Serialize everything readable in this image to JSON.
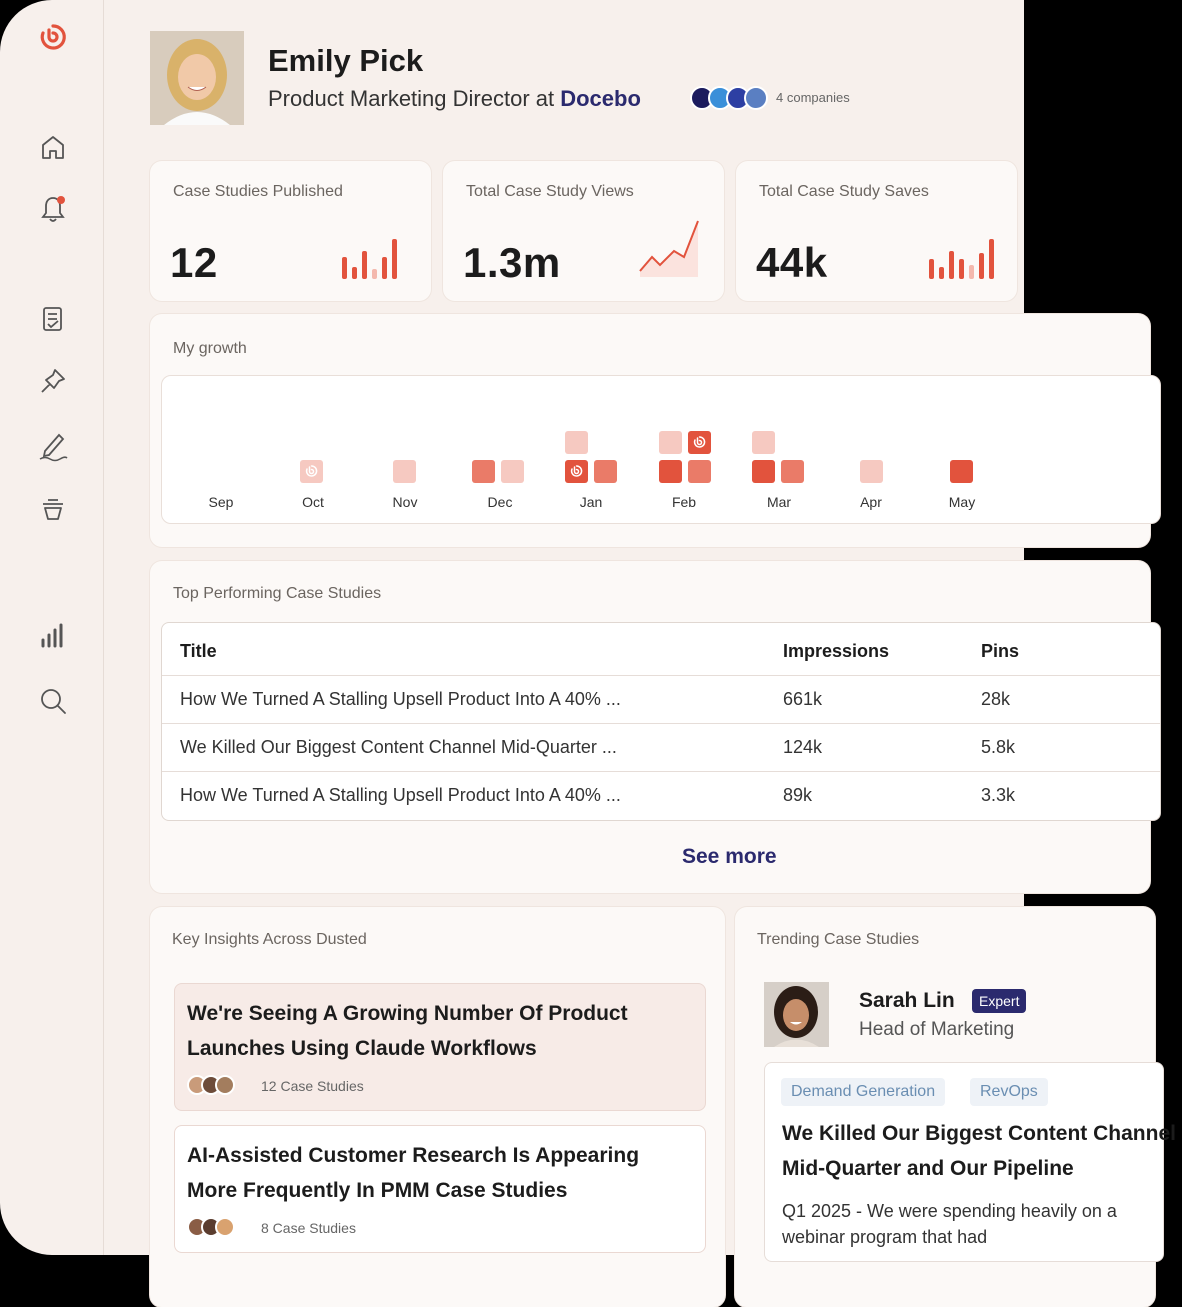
{
  "profile": {
    "name": "Emily Pick",
    "role_prefix": "Product Marketing Director at",
    "company": "Docebo",
    "companies_count": "4 companies"
  },
  "stats": [
    {
      "label": "Case Studies Published",
      "value": "12"
    },
    {
      "label": "Total Case Study Views",
      "value": "1.3m"
    },
    {
      "label": "Total Case Study Saves",
      "value": "44k"
    }
  ],
  "growth": {
    "title": "My growth",
    "months": [
      "Sep",
      "Oct",
      "Nov",
      "Dec",
      "Jan",
      "Feb",
      "Mar",
      "Apr",
      "May"
    ]
  },
  "top_case_studies": {
    "title": "Top Performing Case Studies",
    "columns": [
      "Title",
      "Impressions",
      "Pins"
    ],
    "rows": [
      {
        "title": "How We Turned A Stalling Upsell Product Into A 40% ...",
        "impressions": "661k",
        "pins": "28k"
      },
      {
        "title": "We Killed Our Biggest Content Channel Mid-Quarter ...",
        "impressions": "124k",
        "pins": "5.8k"
      },
      {
        "title": "How We Turned A Stalling Upsell Product Into A 40% ...",
        "impressions": "89k",
        "pins": "3.3k"
      }
    ],
    "see_more": "See more"
  },
  "insights": {
    "title": "Key Insights Across Dusted",
    "items": [
      {
        "title": "We're Seeing A Growing Number Of Product Launches Using Claude Workflows",
        "count": "12 Case Studies"
      },
      {
        "title": "AI-Assisted Customer Research Is Appearing More Frequently In PMM Case Studies",
        "count": "8 Case Studies"
      }
    ]
  },
  "trending": {
    "title": "Trending Case Studies",
    "author": "Sarah Lin",
    "badge": "Expert",
    "author_role": "Head of Marketing",
    "tags": [
      "Demand Generation",
      "RevOps"
    ],
    "headline": "We Killed Our Biggest Content Channel Mid-Quarter and Our Pipeline",
    "snippet": "Q1 2025 - We were spending heavily on a webinar program that had"
  },
  "colors": {
    "accent": "#e2533d",
    "brand_text": "#2b2a6e",
    "background": "#f7f0ec",
    "card": "#fcf9f7"
  }
}
